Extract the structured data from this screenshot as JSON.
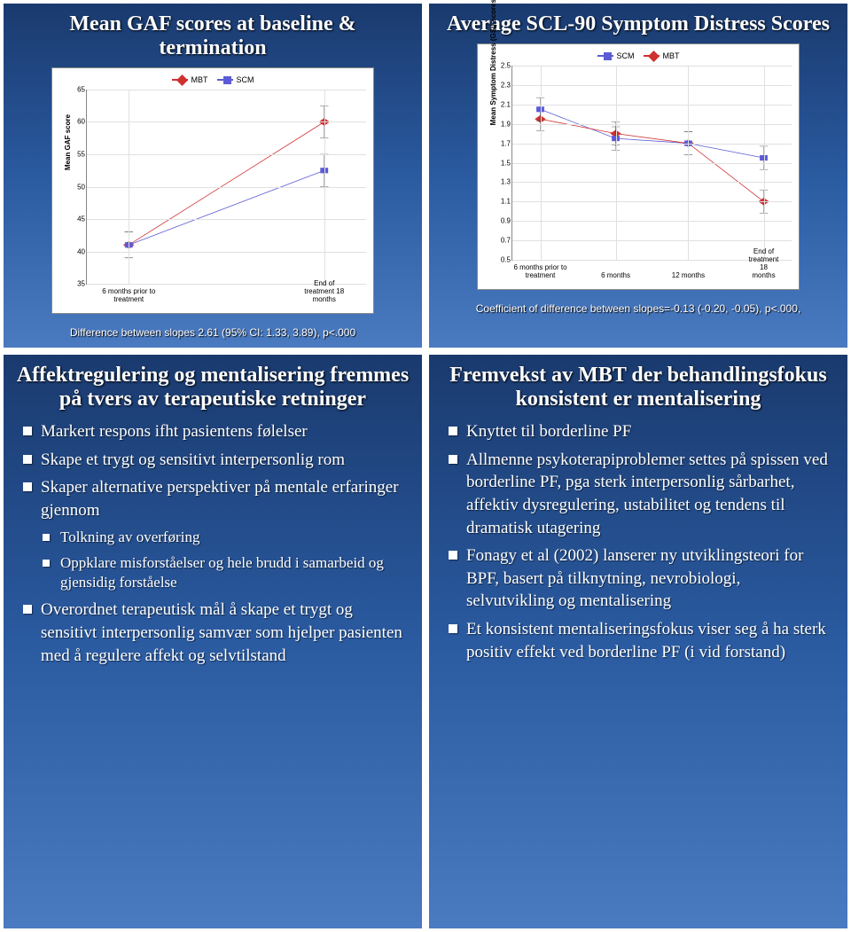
{
  "panel1": {
    "title": "Mean GAF scores at baseline & termination",
    "legend": [
      {
        "label": "MBT",
        "color": "#d03030",
        "shape": "diamond"
      },
      {
        "label": "SCM",
        "color": "#5b5bd6",
        "shape": "square"
      }
    ],
    "ylabel": "Mean GAF score",
    "ylim": [
      35,
      65
    ],
    "yticks": [
      35,
      40,
      45,
      50,
      55,
      60,
      65
    ],
    "xlabels": [
      "6 months prior to treatment",
      "End of treatment 18 months"
    ],
    "series": [
      {
        "name": "MBT",
        "color": "#d03030",
        "shape": "diamond",
        "x": [
          0.15,
          0.85
        ],
        "y": [
          41,
          60
        ],
        "err": [
          2,
          2.5
        ]
      },
      {
        "name": "SCM",
        "color": "#5b5bd6",
        "shape": "square",
        "x": [
          0.15,
          0.85
        ],
        "y": [
          41,
          52.5
        ],
        "err": [
          2,
          2.5
        ]
      }
    ],
    "caption": "Difference between slopes 2.61 (95% CI: 1.33, 3.89), p<.000",
    "grid_color": "#e0e0e0"
  },
  "panel2": {
    "title": "Average SCL-90 Symptom Distress Scores",
    "legend": [
      {
        "label": "SCM",
        "color": "#5b5bd6",
        "shape": "square"
      },
      {
        "label": "MBT",
        "color": "#d03030",
        "shape": "diamond"
      }
    ],
    "ylabel": "Mean Symptom Distress (GSI) scores",
    "ylim": [
      0.5,
      2.5
    ],
    "yticks": [
      0.5,
      0.7,
      0.9,
      1.1,
      1.3,
      1.5,
      1.7,
      1.9,
      2.1,
      2.3,
      2.5
    ],
    "xlabels": [
      "6 months prior to treatment",
      "6 months",
      "12 months",
      "End of treatment 18 months"
    ],
    "series": [
      {
        "name": "MBT",
        "color": "#d03030",
        "shape": "diamond",
        "x": [
          0.1,
          0.37,
          0.63,
          0.9
        ],
        "y": [
          1.95,
          1.8,
          1.7,
          1.1
        ],
        "err": [
          0.12,
          0.12,
          0.12,
          0.12
        ]
      },
      {
        "name": "SCM",
        "color": "#5b5bd6",
        "shape": "square",
        "x": [
          0.1,
          0.37,
          0.63,
          0.9
        ],
        "y": [
          2.05,
          1.75,
          1.7,
          1.55
        ],
        "err": [
          0.12,
          0.12,
          0.12,
          0.12
        ]
      }
    ],
    "caption": "Coefficient of difference between slopes=-0.13 (-0.20, -0.05), p<.000,",
    "grid_color": "#e0e0e0"
  },
  "panel3": {
    "title": "Affektregulering og mentalisering fremmes på tvers av terapeutiske retninger",
    "bullets": [
      {
        "text": "Markert respons ifht pasientens følelser",
        "sub": false
      },
      {
        "text": "Skape et trygt og sensitivt interpersonlig rom",
        "sub": false
      },
      {
        "text": "Skaper alternative perspektiver på mentale erfaringer gjennom",
        "sub": false
      },
      {
        "text": "Tolkning av overføring",
        "sub": true
      },
      {
        "text": "Oppklare misforståelser og hele brudd i samarbeid og gjensidig forståelse",
        "sub": true
      },
      {
        "text": "Overordnet terapeutisk mål å skape et trygt og sensitivt interpersonlig samvær som hjelper pasienten med å regulere affekt og selvtilstand",
        "sub": false
      }
    ]
  },
  "panel4": {
    "title": "Fremvekst av MBT der behandlingsfokus konsistent er mentalisering",
    "bullets": [
      {
        "text": "Knyttet til borderline PF",
        "sub": false
      },
      {
        "text": "Allmenne psykoterapiproblemer settes på spissen ved borderline PF, pga sterk interpersonlig sårbarhet, affektiv dysregulering, ustabilitet og tendens til dramatisk utagering",
        "sub": false
      },
      {
        "text": "Fonagy et al (2002) lanserer ny utviklingsteori for BPF, basert på tilknytning, nevrobiologi, selvutvikling og mentalisering",
        "sub": false
      },
      {
        "text": "Et konsistent mentaliseringsfokus viser seg å ha sterk positiv effekt ved borderline PF (i vid forstand)",
        "sub": false
      }
    ]
  }
}
